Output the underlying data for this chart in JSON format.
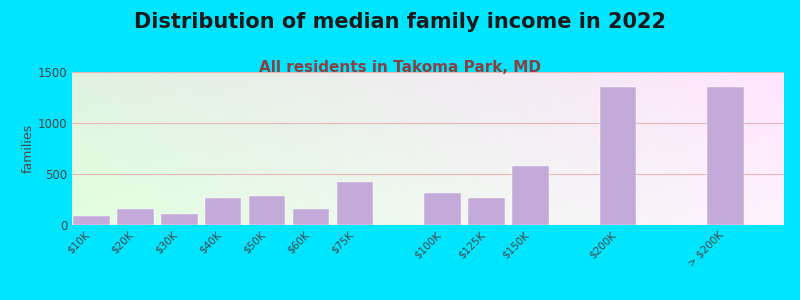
{
  "title": "Distribution of median family income in 2022",
  "subtitle": "All residents in Takoma Park, MD",
  "categories": [
    "$10K",
    "$20K",
    "$30K",
    "$40K",
    "$50K",
    "$60K",
    "$75K",
    "$100K",
    "$125K",
    "$150K",
    "$200K",
    "> $200K"
  ],
  "values": [
    90,
    155,
    110,
    265,
    285,
    155,
    425,
    310,
    265,
    575,
    1350,
    1350
  ],
  "bar_color": "#c4aad8",
  "background_outer": "#00e5ff",
  "title_color": "#1a1a1a",
  "subtitle_color": "#8b4040",
  "ylabel": "families",
  "ylim": [
    0,
    1500
  ],
  "yticks": [
    0,
    500,
    1000,
    1500
  ],
  "plot_bg_top_left": "#d8edd8",
  "plot_bg_top_right": "#f0f5e8",
  "plot_bg_bottom": "#ffffff",
  "grid_color": "#e8b0b0",
  "title_fontsize": 15,
  "subtitle_fontsize": 11,
  "ylabel_fontsize": 9
}
